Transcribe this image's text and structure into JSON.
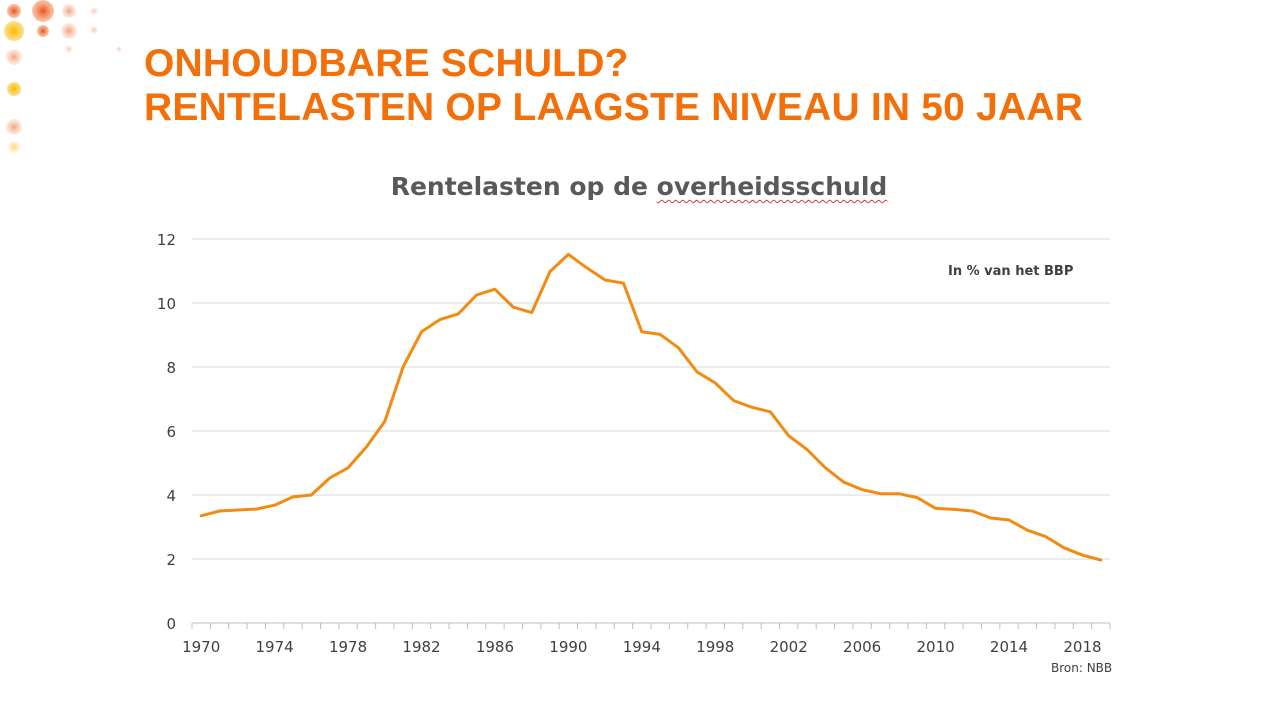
{
  "slide": {
    "title_line1": "ONHOUDBARE SCHULD?",
    "title_line2": "RENTELASTEN OP LAAGSTE NIVEAU IN 50 JAAR"
  },
  "chart_data": {
    "type": "line",
    "title_prefix": "Rentelasten op de ",
    "title_word": "overheidsschuld",
    "annotation": "In % van het BBP",
    "source": "Bron: NBB",
    "xlabel": "",
    "ylabel": "",
    "xlim": [
      1970,
      2019
    ],
    "ylim": [
      0,
      12
    ],
    "yticks": [
      0,
      2,
      4,
      6,
      8,
      10,
      12
    ],
    "xtick_labels": [
      1970,
      1974,
      1978,
      1982,
      1986,
      1990,
      1994,
      1998,
      2002,
      2006,
      2010,
      2014,
      2018
    ],
    "grid": true,
    "color": "#f28b12",
    "x": [
      1970,
      1971,
      1972,
      1973,
      1974,
      1975,
      1976,
      1977,
      1978,
      1979,
      1980,
      1981,
      1982,
      1983,
      1984,
      1985,
      1986,
      1987,
      1988,
      1989,
      1990,
      1991,
      1992,
      1993,
      1994,
      1995,
      1996,
      1997,
      1998,
      1999,
      2000,
      2001,
      2002,
      2003,
      2004,
      2005,
      2006,
      2007,
      2008,
      2009,
      2010,
      2011,
      2012,
      2013,
      2014,
      2015,
      2016,
      2017,
      2018,
      2019
    ],
    "values": [
      3.35,
      3.5,
      3.53,
      3.56,
      3.68,
      3.94,
      4.0,
      4.53,
      4.85,
      5.5,
      6.3,
      8.0,
      9.1,
      9.48,
      9.66,
      10.25,
      10.43,
      9.87,
      9.7,
      10.98,
      11.52,
      11.1,
      10.72,
      10.62,
      9.1,
      9.02,
      8.6,
      7.85,
      7.5,
      6.95,
      6.74,
      6.6,
      5.85,
      5.42,
      4.85,
      4.4,
      4.17,
      4.04,
      4.04,
      3.92,
      3.58,
      3.55,
      3.5,
      3.28,
      3.22,
      2.9,
      2.7,
      2.35,
      2.12,
      1.97
    ]
  },
  "colors": {
    "title_orange": "#f36f0a",
    "line_orange": "#f28b12",
    "grid": "#d9d9d9",
    "text_gray": "#595959"
  }
}
